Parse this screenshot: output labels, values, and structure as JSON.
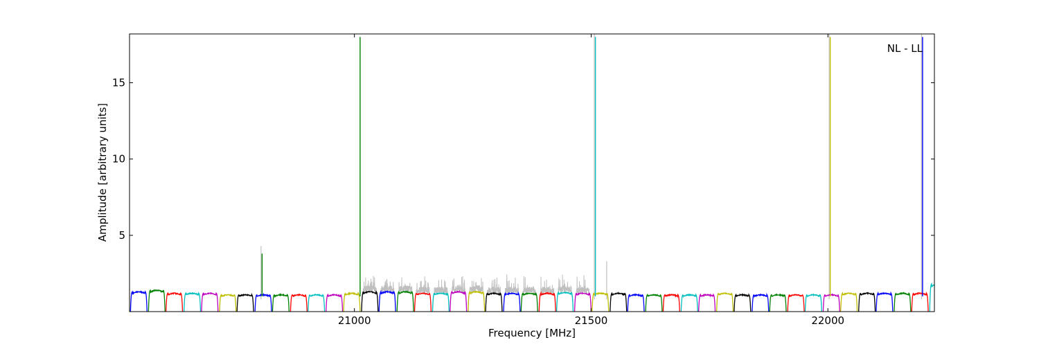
{
  "chart_data": {
    "type": "line",
    "annotation": "NL - LL",
    "xlabel": "Frequency [MHz]",
    "ylabel": "Amplitude [arbitrary units]",
    "xlim": [
      20525,
      22225
    ],
    "ylim": [
      0,
      18.2
    ],
    "xticks": [
      21000,
      21500,
      22000
    ],
    "yticks": [
      5,
      10,
      15
    ],
    "grid": false,
    "legend": "none",
    "band_width_mhz": 35,
    "colors": [
      "#0000ff",
      "#008000",
      "#ff0000",
      "#00bfbf",
      "#bf00bf",
      "#bfbf00",
      "#000000"
    ],
    "raw_color": "#bfbfbf",
    "band_start_x": [
      20527,
      20565,
      20602,
      20640,
      20677,
      20715,
      20752,
      20790,
      20827,
      20865,
      20902,
      20940,
      20977,
      21015,
      21052,
      21090,
      21127,
      21165,
      21202,
      21240,
      21277,
      21315,
      21352,
      21390,
      21427,
      21465,
      21502,
      21540,
      21577,
      21615,
      21652,
      21690,
      21727,
      21765,
      21802,
      21840,
      21877,
      21915,
      21952,
      21990,
      22027,
      22065,
      22102,
      22140,
      22177,
      22215
    ],
    "band_level": [
      1.3,
      1.4,
      1.2,
      1.2,
      1.2,
      1.1,
      1.1,
      1.1,
      1.1,
      1.1,
      1.1,
      1.1,
      1.2,
      1.3,
      1.3,
      1.3,
      1.2,
      1.2,
      1.3,
      1.3,
      1.2,
      1.2,
      1.2,
      1.2,
      1.25,
      1.2,
      1.2,
      1.2,
      1.1,
      1.1,
      1.1,
      1.1,
      1.1,
      1.2,
      1.1,
      1.1,
      1.1,
      1.1,
      1.1,
      1.1,
      1.2,
      1.2,
      1.2,
      1.2,
      1.2,
      1.8
    ],
    "spikes": [
      {
        "x": 20805,
        "y": 3.8,
        "color": "#008000"
      },
      {
        "x": 21012,
        "y": 18.0,
        "color": "#008000"
      },
      {
        "x": 21509,
        "y": 18.0,
        "color": "#00bfbf"
      },
      {
        "x": 22005,
        "y": 18.0,
        "color": "#bfbf00"
      },
      {
        "x": 22200,
        "y": 18.0,
        "color": "#0000ff"
      }
    ],
    "raw_spikes": [
      {
        "x": 20805,
        "y": 4.3
      },
      {
        "x": 21509,
        "y": 18.2
      },
      {
        "x": 21535,
        "y": 3.3
      },
      {
        "x": 22005,
        "y": 18.2
      },
      {
        "x": 22200,
        "y": 18.2
      }
    ],
    "raw_noise_range": [
      21035,
      21500
    ]
  }
}
